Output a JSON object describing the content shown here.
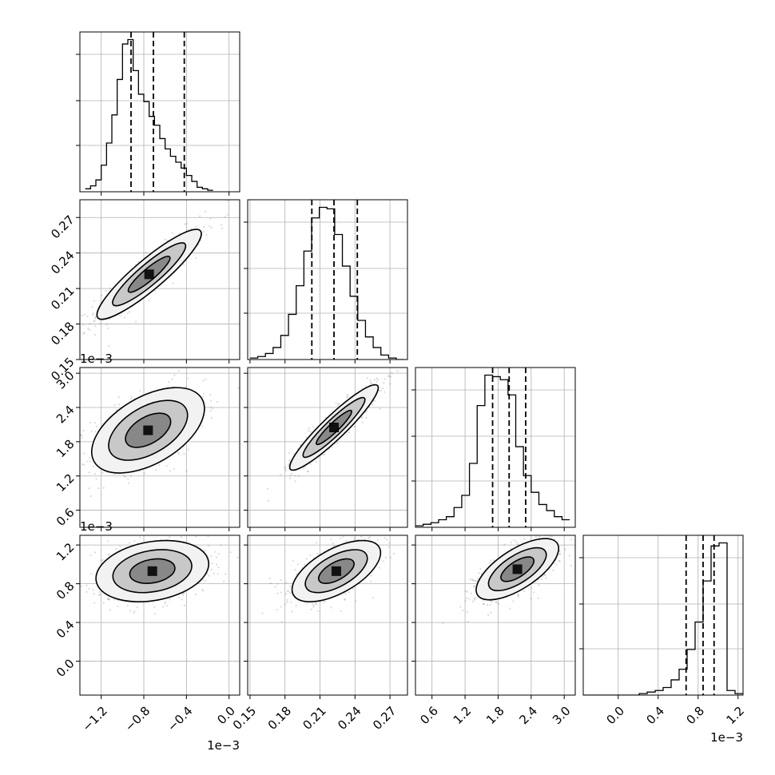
{
  "chart_data": [
    {
      "type": "histogram",
      "panel": "param-1",
      "bins": {
        "start": -1.35,
        "width": 0.05,
        "counts": [
          2,
          4,
          8,
          18,
          33,
          52,
          76,
          100,
          103,
          82,
          66,
          61,
          51,
          45,
          36,
          29,
          24,
          20,
          16,
          11,
          7,
          3,
          2,
          1
        ]
      },
      "quantiles": [
        -0.92,
        -0.71,
        -0.42
      ],
      "xlim": [
        -1.4,
        0.1
      ],
      "xticks": [
        "−1.2",
        "−0.8",
        "−0.4",
        "0.0"
      ],
      "offset_label": "1e−3"
    },
    {
      "type": "scatter",
      "panel": "param-2-vs-param-1",
      "xlim": [
        -1.4,
        0.1
      ],
      "ylim": [
        0.15,
        0.285
      ],
      "yticks": [
        "0.15",
        "0.18",
        "0.21",
        "0.24",
        "0.27"
      ],
      "xticks": [
        "−1.2",
        "−0.8",
        "−0.4",
        "0.0"
      ],
      "peak": [
        -0.75,
        0.222
      ],
      "cov": [
        [
          0.06,
          0.0042
        ],
        [
          0.0042,
          0.00036
        ]
      ],
      "levels": [
        0.47,
        0.3,
        0.13
      ]
    },
    {
      "type": "histogram",
      "panel": "param-2",
      "bins": {
        "start": 0.15,
        "width": 0.0066,
        "counts": [
          1,
          2,
          4,
          8,
          16,
          30,
          49,
          72,
          94,
          101,
          100,
          83,
          62,
          42,
          26,
          15,
          8,
          3,
          1,
          0
        ]
      },
      "quantiles": [
        0.203,
        0.222,
        0.242
      ],
      "xlim": [
        0.148,
        0.285
      ],
      "xticks": [
        "0.15",
        "0.18",
        "0.21",
        "0.24",
        "0.27"
      ]
    },
    {
      "type": "scatter",
      "panel": "param-3-vs-param-1",
      "xlim": [
        -1.4,
        0.1
      ],
      "ylim": [
        0.3,
        3.1
      ],
      "yticks": [
        "0.6",
        "1.2",
        "1.8",
        "2.4",
        "3.0"
      ],
      "xticks": [
        "−1.2",
        "−0.8",
        "−0.4",
        "0.0"
      ],
      "peak": [
        -0.76,
        2.0
      ],
      "cov": [
        [
          0.07,
          0.05
        ],
        [
          0.05,
          0.14
        ]
      ],
      "levels": [
        0.9,
        0.6,
        0.3
      ],
      "offset_label": "1e−3"
    },
    {
      "type": "scatter",
      "panel": "param-3-vs-param-2",
      "xlim": [
        0.148,
        0.285
      ],
      "ylim": [
        0.3,
        3.1
      ],
      "yticks": [
        "0.6",
        "1.2",
        "1.8",
        "2.4",
        "3.0"
      ],
      "xticks": [
        "0.15",
        "0.18",
        "0.21",
        "0.24",
        "0.27"
      ],
      "peak": [
        0.222,
        2.05
      ],
      "cov": [
        [
          0.00036,
          0.0066
        ],
        [
          0.0066,
          0.14
        ]
      ],
      "levels": [
        0.9,
        0.6,
        0.3
      ]
    },
    {
      "type": "histogram",
      "panel": "param-3",
      "bins": {
        "start": 0.3,
        "width": 0.14,
        "counts": [
          1,
          2,
          3,
          5,
          7,
          13,
          21,
          42,
          80,
          100,
          99,
          97,
          87,
          53,
          34,
          23,
          15,
          11,
          7,
          5
        ]
      },
      "quantiles": [
        1.7,
        2.0,
        2.3
      ],
      "xlim": [
        0.3,
        3.2
      ],
      "xticks": [
        "0.6",
        "1.2",
        "1.8",
        "2.4",
        "3.0"
      ],
      "offset_label": "1e−3"
    },
    {
      "type": "scatter",
      "panel": "param-4-vs-param-1",
      "xlim": [
        -1.4,
        0.1
      ],
      "ylim": [
        -0.35,
        1.3
      ],
      "yticks": [
        "0.0",
        "0.4",
        "0.8",
        "1.2"
      ],
      "xticks": [
        "−1.2",
        "−0.8",
        "−0.4",
        "0.0"
      ],
      "peak": [
        -0.72,
        0.93
      ],
      "cov": [
        [
          0.07,
          0.01
        ],
        [
          0.01,
          0.025
        ]
      ],
      "levels": [
        0.55,
        0.35,
        0.15
      ],
      "offset_label": "1e−3"
    },
    {
      "type": "scatter",
      "panel": "param-4-vs-param-2",
      "xlim": [
        0.148,
        0.285
      ],
      "ylim": [
        -0.35,
        1.3
      ],
      "yticks": [
        "0.0",
        "0.4",
        "0.8",
        "1.2"
      ],
      "xticks": [
        "0.15",
        "0.18",
        "0.21",
        "0.24",
        "0.27"
      ],
      "peak": [
        0.224,
        0.93
      ],
      "cov": [
        [
          0.00036,
          0.0018
        ],
        [
          0.0018,
          0.025
        ]
      ],
      "levels": [
        0.55,
        0.35,
        0.15
      ]
    },
    {
      "type": "scatter",
      "panel": "param-4-vs-param-3",
      "xlim": [
        0.3,
        3.2
      ],
      "ylim": [
        -0.35,
        1.3
      ],
      "yticks": [
        "0.0",
        "0.4",
        "0.8",
        "1.2"
      ],
      "xticks": [
        "0.6",
        "1.2",
        "1.8",
        "2.4",
        "3.0"
      ],
      "peak": [
        2.15,
        0.95
      ],
      "cov": [
        [
          0.14,
          0.04
        ],
        [
          0.04,
          0.025
        ]
      ],
      "levels": [
        0.55,
        0.35,
        0.15
      ]
    },
    {
      "type": "histogram",
      "panel": "param-4",
      "bins": {
        "start": -0.35,
        "width": 0.08,
        "counts": [
          0,
          0,
          0,
          0,
          0,
          0,
          0,
          1,
          2,
          3,
          5,
          10,
          17,
          30,
          48,
          75,
          98,
          100,
          3,
          1
        ]
      },
      "quantiles": [
        0.68,
        0.85,
        0.96
      ],
      "xlim": [
        -0.35,
        1.25
      ],
      "xticks": [
        "0.0",
        "0.4",
        "0.8",
        "1.2"
      ],
      "offset_label": "1e−3"
    }
  ]
}
